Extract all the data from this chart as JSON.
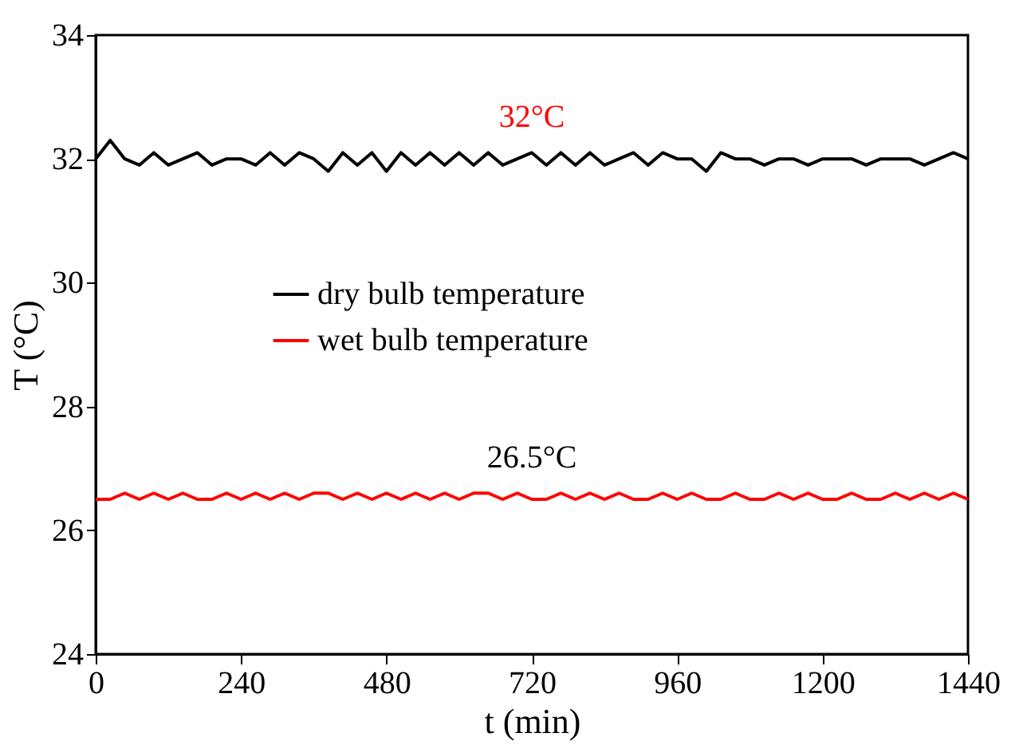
{
  "chart_data": {
    "type": "line",
    "xlabel": "t (min)",
    "ylabel": "T (°C)",
    "x": [
      0,
      24,
      48,
      72,
      96,
      120,
      144,
      168,
      192,
      216,
      240,
      264,
      288,
      312,
      336,
      360,
      384,
      408,
      432,
      456,
      480,
      504,
      528,
      552,
      576,
      600,
      624,
      648,
      672,
      696,
      720,
      744,
      768,
      792,
      816,
      840,
      864,
      888,
      912,
      936,
      960,
      984,
      1008,
      1032,
      1056,
      1080,
      1104,
      1128,
      1152,
      1176,
      1200,
      1224,
      1248,
      1272,
      1296,
      1320,
      1344,
      1368,
      1392,
      1416,
      1440
    ],
    "series": [
      {
        "name": "dry bulb temperature",
        "color": "#000000",
        "values": [
          32.0,
          32.3,
          32.0,
          31.9,
          32.1,
          31.9,
          32.0,
          32.1,
          31.9,
          32.0,
          32.0,
          31.9,
          32.1,
          31.9,
          32.1,
          32.0,
          31.8,
          32.1,
          31.9,
          32.1,
          31.8,
          32.1,
          31.9,
          32.1,
          31.9,
          32.1,
          31.9,
          32.1,
          31.9,
          32.0,
          32.1,
          31.9,
          32.1,
          31.9,
          32.1,
          31.9,
          32.0,
          32.1,
          31.9,
          32.1,
          32.0,
          32.0,
          31.8,
          32.1,
          32.0,
          32.0,
          31.9,
          32.0,
          32.0,
          31.9,
          32.0,
          32.0,
          32.0,
          31.9,
          32.0,
          32.0,
          32.0,
          31.9,
          32.0,
          32.1,
          32.0
        ]
      },
      {
        "name": "wet bulb temperature",
        "color": "#ff0000",
        "values": [
          26.5,
          26.5,
          26.6,
          26.5,
          26.6,
          26.5,
          26.6,
          26.5,
          26.5,
          26.6,
          26.5,
          26.6,
          26.5,
          26.6,
          26.5,
          26.6,
          26.6,
          26.5,
          26.6,
          26.5,
          26.6,
          26.5,
          26.6,
          26.5,
          26.6,
          26.5,
          26.6,
          26.6,
          26.5,
          26.6,
          26.5,
          26.5,
          26.6,
          26.5,
          26.6,
          26.5,
          26.6,
          26.5,
          26.5,
          26.6,
          26.5,
          26.6,
          26.5,
          26.5,
          26.6,
          26.5,
          26.5,
          26.6,
          26.5,
          26.6,
          26.5,
          26.5,
          26.6,
          26.5,
          26.5,
          26.6,
          26.5,
          26.6,
          26.5,
          26.6,
          26.5
        ]
      }
    ],
    "annotations": [
      {
        "text": "32°C",
        "x": 720,
        "y": 32
      },
      {
        "text": "26.5°C",
        "x": 720,
        "y": 26.5
      }
    ],
    "xlim": [
      0,
      1440
    ],
    "xticks": [
      0,
      240,
      480,
      720,
      960,
      1200,
      1440
    ],
    "ylim": [
      24,
      34
    ],
    "yticks": [
      24,
      26,
      28,
      30,
      32,
      34
    ],
    "legend": "left",
    "grid": false
  }
}
